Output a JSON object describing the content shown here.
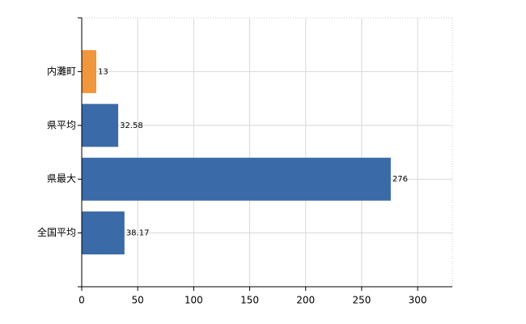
{
  "chart_data": {
    "type": "barh",
    "categories": [
      "内灘町",
      "県平均",
      "県最大",
      "全国平均"
    ],
    "values": [
      13,
      32.58,
      276,
      38.17
    ],
    "colors": [
      "#f0963c",
      "#3a6aa8",
      "#3a6aa8",
      "#3a6aa8"
    ],
    "xlim": [
      0,
      331
    ],
    "xticks": [
      0,
      50,
      100,
      150,
      200,
      250,
      300
    ],
    "grid": true
  }
}
